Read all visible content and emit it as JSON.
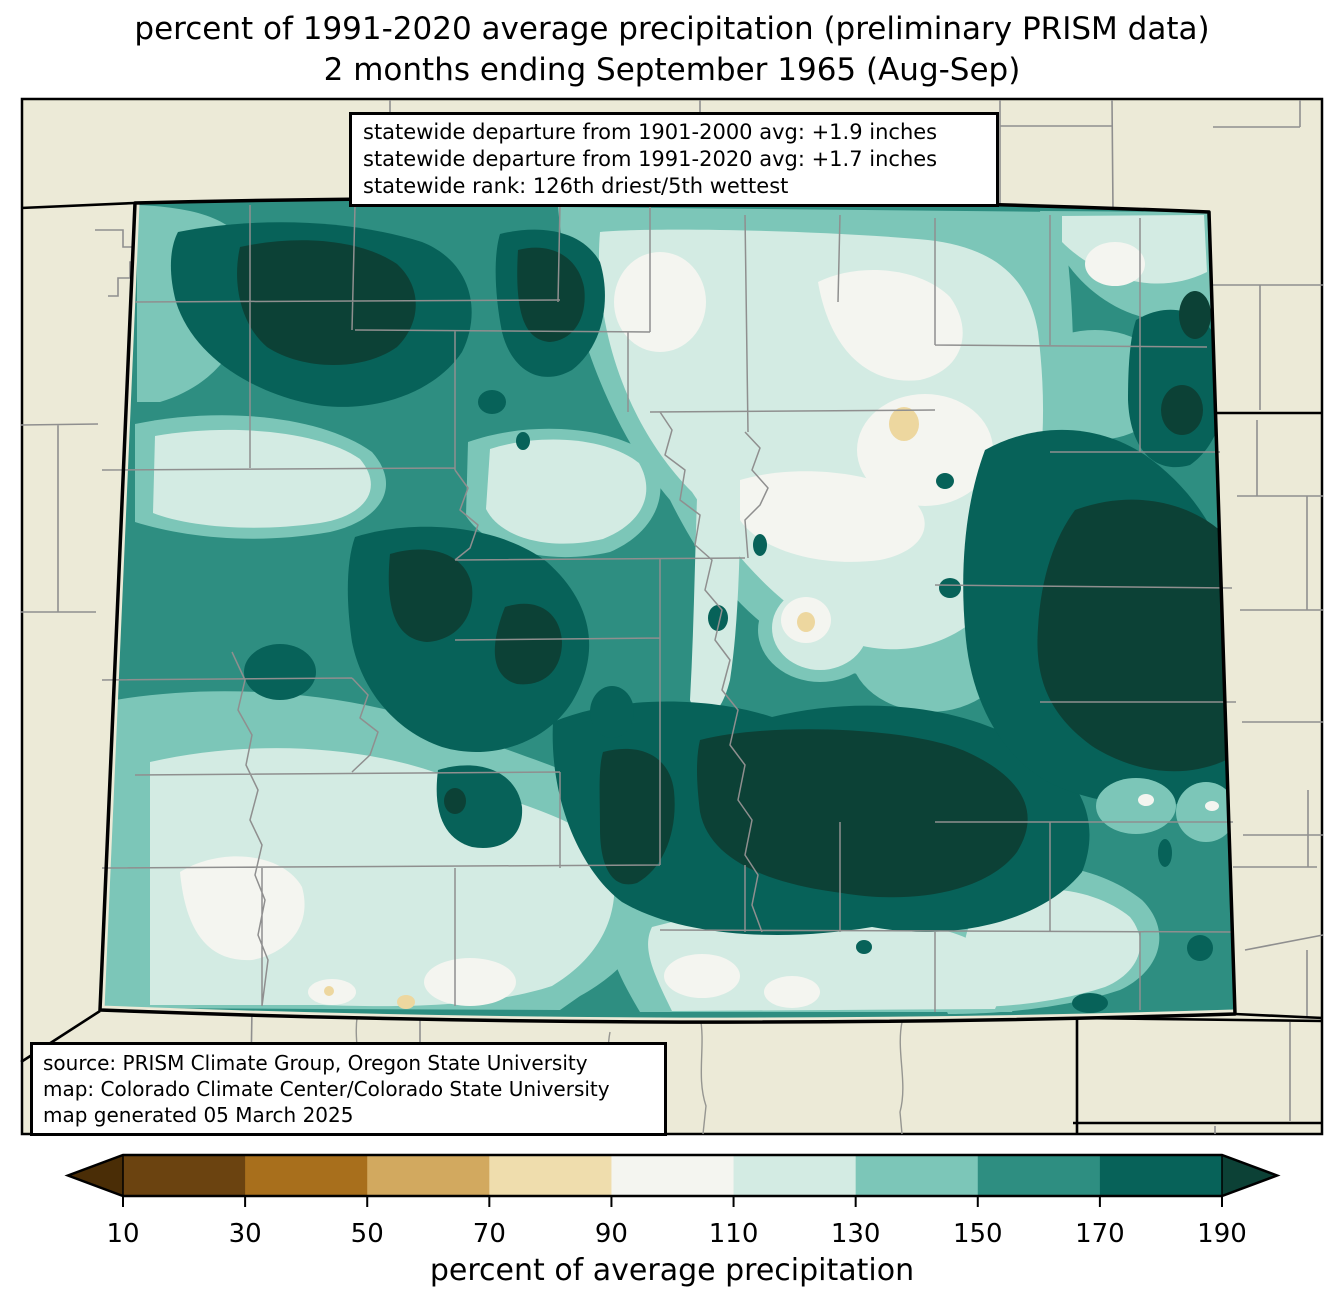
{
  "title": {
    "line1": "percent of 1991-2020 average precipitation (preliminary PRISM data)",
    "line2": "2 months ending September 1965 (Aug-Sep)"
  },
  "stats_box": {
    "line1": "statewide departure from 1901-2000 avg: +1.9 inches",
    "line2": "statewide departure from 1991-2020 avg: +1.7 inches",
    "line3": "statewide rank: 126th driest/5th wettest"
  },
  "source_box": {
    "line1": "source: PRISM Climate Group, Oregon State University",
    "line2": "map: Colorado Climate Center/Colorado State University",
    "line3": "map generated 05 March 2025"
  },
  "colorbar": {
    "caption": "percent of average precipitation",
    "ticks": [
      "10",
      "30",
      "50",
      "70",
      "90",
      "110",
      "130",
      "150",
      "170",
      "190"
    ],
    "colors": [
      "#4a2d06",
      "#6b4310",
      "#a86f1c",
      "#d2a95f",
      "#efddad",
      "#f4f5f0",
      "#d3ebe3",
      "#7cc6b8",
      "#2e8e81",
      "#076259",
      "#0c4136"
    ],
    "outline_color": "#000000"
  },
  "map": {
    "region": "Colorado",
    "background_color": "#ecead7",
    "county_line_color": "#8f8f8f",
    "state_line_color": "#000000",
    "palette": {
      "c70": "#edd79f",
      "c90": "#f4f5f0",
      "c110": "#d3ebe3",
      "c130": "#7cc6b8",
      "c150": "#2e8e81",
      "c170": "#076259",
      "c190": "#0c4136"
    }
  }
}
